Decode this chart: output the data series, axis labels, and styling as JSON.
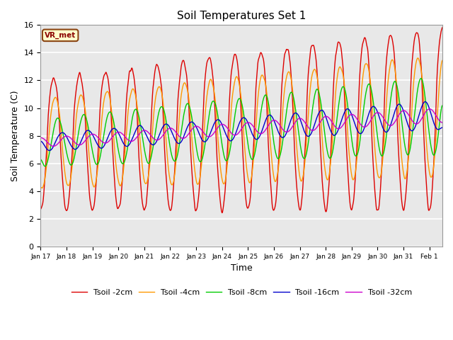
{
  "title": "Soil Temperatures Set 1",
  "xlabel": "Time",
  "ylabel": "Soil Temperature (C)",
  "ylim": [
    0,
    16
  ],
  "bg_color": "#e8e8e8",
  "fig_bg": "#ffffff",
  "annotation": "VR_met",
  "legend": [
    "Tsoil -2cm",
    "Tsoil -4cm",
    "Tsoil -8cm",
    "Tsoil -16cm",
    "Tsoil -32cm"
  ],
  "colors": [
    "#dd0000",
    "#ff9900",
    "#00cc00",
    "#0000cc",
    "#cc00cc"
  ],
  "linewidth": 1.0,
  "tick_labels": [
    "Jan 17",
    "Jan 18",
    "Jan 19",
    "Jan 20",
    "Jan 21",
    "Jan 22",
    "Jan 23",
    "Jan 24",
    "Jan 25",
    "Jan 26",
    "Jan 27",
    "Jan 28",
    "Jan 29",
    "Jan 30",
    "Jan 31",
    "Feb 1"
  ]
}
